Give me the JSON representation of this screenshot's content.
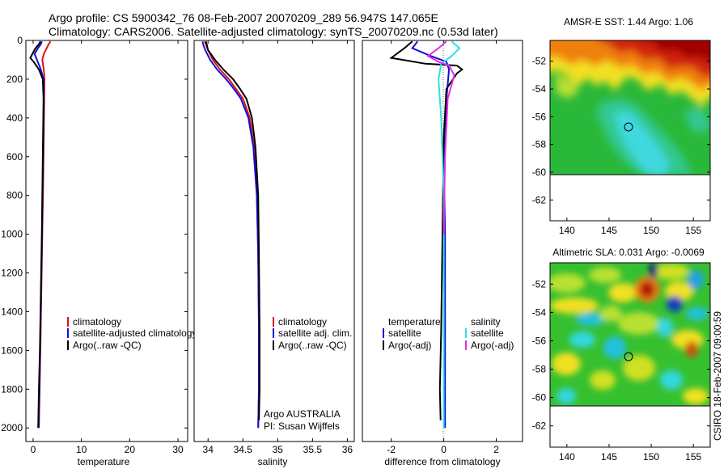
{
  "title": {
    "line1": "Argo profile: CS 5900342_76 08-Feb-2007 20070209_289 56.947S 147.065E",
    "line2": "Climatology: CARS2006. Satellite-adjusted climatology: synTS_20070209.nc (0.53d later)"
  },
  "side_label": "CSIRO 18-Feb-2007 09:00:59",
  "colors": {
    "climatology": "#e01010",
    "satellite": "#1010e0",
    "argo": "#000000",
    "salinity_satellite": "#30e0e0",
    "salinity_argo": "#e030e0"
  },
  "chart_data": [
    {
      "type": "line",
      "title": "",
      "xlabel": "temperature",
      "ylabel": "",
      "xlim": [
        -1.5,
        32
      ],
      "ylim": [
        2070,
        0
      ],
      "xticks": [
        0,
        10,
        20,
        30
      ],
      "xtick_labels": [
        "0",
        "10",
        "20",
        "30"
      ],
      "yticks": [
        0,
        200,
        400,
        600,
        800,
        1000,
        1200,
        1400,
        1600,
        1800,
        2000
      ],
      "ytick_labels": [
        "0",
        "200",
        "400",
        "600",
        "800",
        "1000",
        "1200",
        "1400",
        "1600",
        "1800",
        "2000"
      ],
      "legend": [
        "climatology",
        "satellite-adjusted climatology",
        "Argo(..raw -QC)"
      ],
      "series": [
        {
          "name": "climatology",
          "color_key": "climatology",
          "x": [
            3.6,
            3.2,
            2.8,
            2.2,
            1.9,
            2.2,
            2.35,
            2.3,
            2.2,
            2.1,
            1.9,
            1.7,
            1.5,
            1.35,
            1.2
          ],
          "y": [
            5,
            20,
            40,
            70,
            100,
            150,
            200,
            300,
            500,
            700,
            1000,
            1300,
            1600,
            1800,
            2000
          ]
        },
        {
          "name": "satellite-adjusted climatology",
          "color_key": "satellite",
          "x": [
            1.8,
            1.6,
            1.0,
            0.3,
            0.8,
            1.6,
            2.15,
            2.2,
            2.1,
            2.0,
            1.85,
            1.65,
            1.45,
            1.3,
            1.15
          ],
          "y": [
            5,
            20,
            40,
            70,
            100,
            150,
            200,
            300,
            500,
            700,
            1000,
            1300,
            1600,
            1800,
            2000
          ]
        },
        {
          "name": "Argo(..raw -QC)",
          "color_key": "argo",
          "x": [
            1.5,
            1.2,
            0.5,
            -0.6,
            0.1,
            1.2,
            2.0,
            2.15,
            2.05,
            1.95,
            1.8,
            1.6,
            1.4,
            1.2,
            1.05
          ],
          "y": [
            5,
            20,
            40,
            90,
            110,
            150,
            200,
            300,
            500,
            700,
            1000,
            1300,
            1600,
            1800,
            2000
          ]
        }
      ]
    },
    {
      "type": "line",
      "title": "",
      "xlabel": "salinity",
      "ylabel": "",
      "xlim": [
        33.8,
        36.1
      ],
      "ylim": [
        2070,
        0
      ],
      "xticks": [
        34,
        34.5,
        35,
        35.5,
        36
      ],
      "xtick_labels": [
        "34",
        "34.5",
        "35",
        "35.5",
        "36"
      ],
      "legend": [
        "climatology",
        "satellite adj. clim.",
        "Argo(..raw -QC)"
      ],
      "annotations": [
        "Argo AUSTRALIA",
        "PI: Susan Wijffels"
      ],
      "series": [
        {
          "name": "climatology",
          "color_key": "climatology",
          "x": [
            33.95,
            33.97,
            34.0,
            34.07,
            34.17,
            34.3,
            34.4,
            34.5,
            34.6,
            34.66,
            34.7,
            34.72,
            34.73,
            34.73,
            34.72
          ],
          "y": [
            5,
            20,
            50,
            100,
            150,
            200,
            250,
            300,
            400,
            550,
            800,
            1100,
            1500,
            1800,
            2000
          ]
        },
        {
          "name": "satellite adj. clim.",
          "color_key": "satellite",
          "x": [
            33.92,
            33.93,
            33.96,
            34.03,
            34.13,
            34.26,
            34.37,
            34.47,
            34.58,
            34.65,
            34.7,
            34.72,
            34.73,
            34.73,
            34.72
          ],
          "y": [
            5,
            20,
            50,
            100,
            150,
            200,
            250,
            300,
            400,
            550,
            800,
            1100,
            1500,
            1800,
            2000
          ]
        },
        {
          "name": "Argo(..raw -QC)",
          "color_key": "argo",
          "x": [
            33.97,
            33.98,
            34.0,
            34.1,
            34.22,
            34.36,
            34.46,
            34.55,
            34.63,
            34.68,
            34.72,
            34.73,
            34.74,
            34.74,
            34.73
          ],
          "y": [
            5,
            20,
            50,
            100,
            150,
            200,
            250,
            300,
            400,
            550,
            800,
            1100,
            1500,
            1800,
            1960
          ]
        }
      ]
    },
    {
      "type": "line",
      "title": "",
      "xlabel": "difference from climatology",
      "ylabel": "",
      "xlim": [
        -3.1,
        3.0
      ],
      "ylim": [
        2070,
        0
      ],
      "xticks": [
        -2,
        0,
        2
      ],
      "xtick_labels": [
        "-2",
        "0",
        "2"
      ],
      "legend_left": {
        "heading": "temperature",
        "items": [
          "satellite",
          "Argo(-adj)"
        ]
      },
      "legend_right": {
        "heading": "salinity",
        "items": [
          "satellite",
          "Argo(-adj)"
        ]
      },
      "series": [
        {
          "name": "temperature satellite",
          "color_key": "satellite",
          "x": [
            -1.0,
            -1.2,
            -0.5,
            0.1,
            0.2,
            0.1,
            0.0,
            0.05,
            0.05,
            0.05
          ],
          "y": [
            5,
            40,
            80,
            110,
            150,
            300,
            600,
            1000,
            1500,
            2000
          ]
        },
        {
          "name": "temperature Argo(-adj)",
          "color_key": "argo",
          "x": [
            -1.2,
            -1.5,
            -2.0,
            -0.7,
            0.5,
            0.7,
            0.5,
            0.1,
            0.0,
            -0.05,
            -0.1,
            -0.15,
            -0.12
          ],
          "y": [
            5,
            40,
            90,
            120,
            130,
            150,
            170,
            250,
            500,
            1000,
            1500,
            1800,
            1960
          ]
        },
        {
          "name": "salinity satellite",
          "color_key": "salinity_satellite",
          "x": [
            0.3,
            0.6,
            0.3,
            -0.1,
            -0.2,
            -0.1,
            0.0,
            0.0,
            0.0
          ],
          "y": [
            5,
            40,
            80,
            120,
            200,
            400,
            800,
            1400,
            2000
          ]
        },
        {
          "name": "salinity Argo(-adj)",
          "color_key": "salinity_argo",
          "x": [
            0.1,
            -0.2,
            -0.6,
            -0.2,
            0.2,
            0.4,
            0.15,
            0.05,
            0.0
          ],
          "y": [
            5,
            40,
            80,
            110,
            130,
            180,
            300,
            600,
            1000
          ]
        }
      ]
    },
    {
      "type": "heatmap",
      "title": "AMSR-E SST: 1.44 Argo: 1.06",
      "xlim": [
        138,
        157
      ],
      "ylim": [
        -63.5,
        -50.5
      ],
      "xticks": [
        140,
        145,
        150,
        155
      ],
      "xtick_labels": [
        "140",
        "145",
        "150",
        "155"
      ],
      "yticks": [
        -52,
        -54,
        -56,
        -58,
        -60,
        -62
      ],
      "ytick_labels": [
        "-52",
        "-54",
        "-56",
        "-58",
        "-60",
        "-62"
      ],
      "marker": {
        "lon": 147.07,
        "lat": -56.95
      },
      "data_lat_min": -60
    },
    {
      "type": "heatmap",
      "title": "Altimetric SLA: 0.031 Argo: -0.0069",
      "xlim": [
        138,
        157
      ],
      "ylim": [
        -63.5,
        -50.5
      ],
      "xticks": [
        140,
        145,
        150,
        155
      ],
      "xtick_labels": [
        "140",
        "145",
        "150",
        "155"
      ],
      "yticks": [
        -52,
        -54,
        -56,
        -58,
        -60,
        -62
      ],
      "ytick_labels": [
        "-52",
        "-54",
        "-56",
        "-58",
        "-60",
        "-62"
      ],
      "marker": {
        "lon": 147.07,
        "lat": -56.95
      },
      "data_lat_min": -60
    }
  ]
}
